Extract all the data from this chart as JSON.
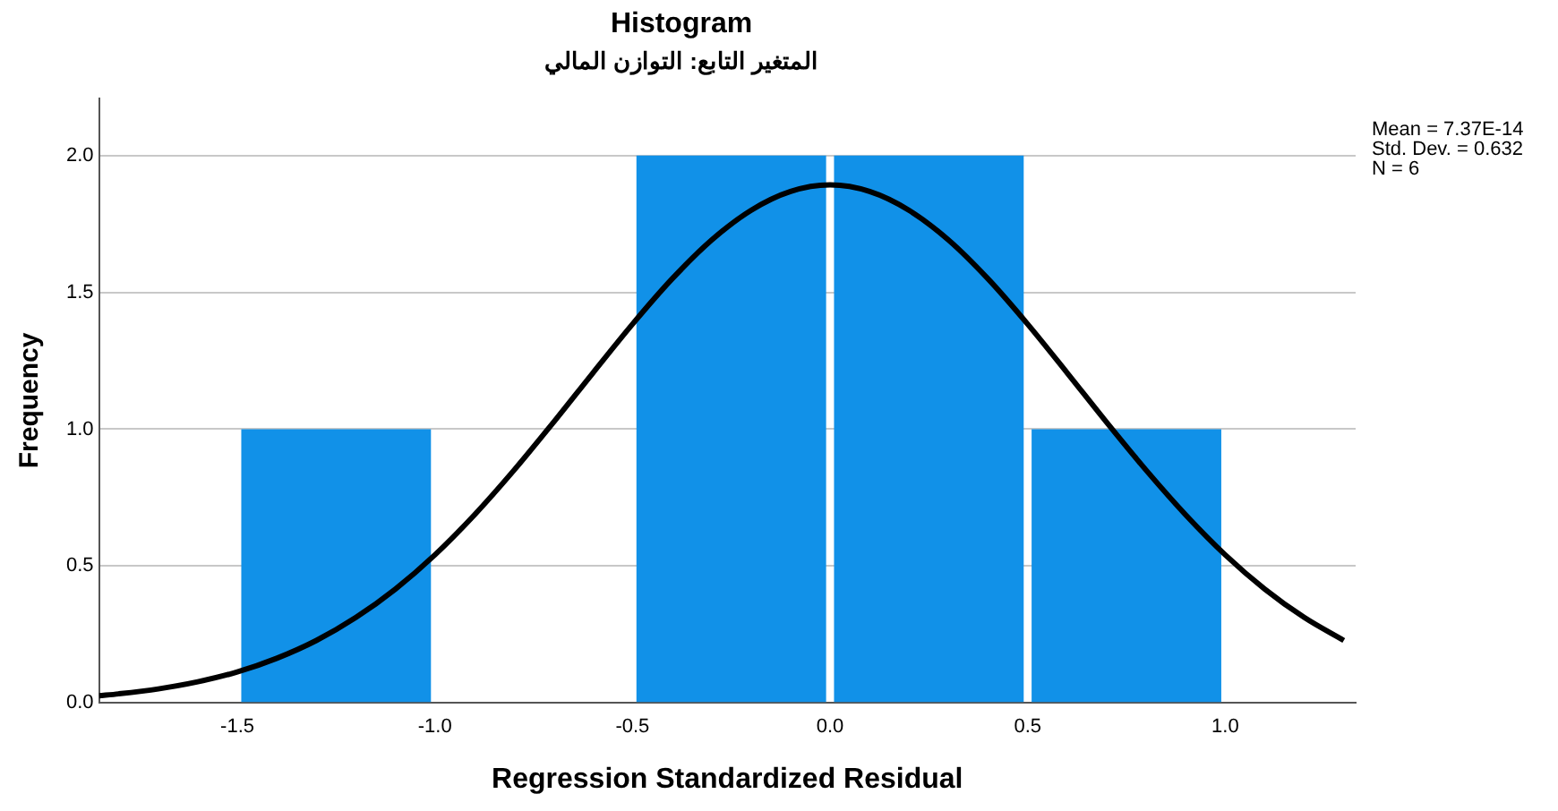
{
  "chart_data": {
    "type": "histogram",
    "title": "Histogram",
    "subtitle": "المتغير التابع: التوازن المالي",
    "xlabel": "Regression Standardized Residual",
    "ylabel": "Frequency",
    "bins": [
      -1.5,
      -1.0,
      -0.5,
      0,
      0.5,
      1.0
    ],
    "values": [
      1,
      0,
      2,
      2,
      1
    ],
    "color": "#1191e8",
    "series": [
      {
        "type": "line",
        "color": "#000000",
        "x": [
          -1.85,
          -1.8,
          -1.7,
          -1.6,
          -1.5,
          -1.4,
          -1.3,
          -1.2,
          -1.1,
          -1.0,
          -0.9,
          -0.8,
          -0.7,
          -0.6,
          -0.5,
          -0.4,
          -0.3,
          -0.2,
          -0.1,
          0,
          0.1,
          0.2,
          0.3,
          0.4,
          0.5,
          0.6,
          0.7,
          0.8,
          0.9,
          1.0,
          1.1,
          1.2,
          1.3
        ],
        "values": [
          0.026,
          0.033,
          0.051,
          0.077,
          0.113,
          0.163,
          0.228,
          0.312,
          0.416,
          0.541,
          0.687,
          0.85,
          1.025,
          1.206,
          1.384,
          1.549,
          1.691,
          1.8,
          1.869,
          1.893,
          1.869,
          1.8,
          1.691,
          1.549,
          1.384,
          1.206,
          1.025,
          0.85,
          0.687,
          0.541,
          0.416,
          0.312,
          0.228
        ]
      }
    ],
    "xlim": [
      -1.85,
      1.33
    ],
    "xticks": [
      {
        "value": -1.5,
        "label": "-1.5"
      },
      {
        "value": -1.0,
        "label": "-1.0"
      },
      {
        "value": -0.5,
        "label": "-0.5"
      },
      {
        "value": 0,
        "label": "0.0"
      },
      {
        "value": 0.5,
        "label": "0.5"
      },
      {
        "value": 1.0,
        "label": "1.0"
      }
    ],
    "ylim": [
      0,
      2.21
    ],
    "yticks": [
      {
        "value": 0,
        "label": "0.0"
      },
      {
        "value": 0.5,
        "label": "0.5"
      },
      {
        "value": 1.0,
        "label": "1.0"
      },
      {
        "value": 1.5,
        "label": "1.5"
      },
      {
        "value": 2.0,
        "label": "2.0"
      }
    ],
    "grid": "y",
    "legend": false,
    "marker": "none",
    "line_style": "solid",
    "annotations": [
      "Mean = 7.37E-14",
      "Std. Dev. = 0.632",
      "N = 6"
    ]
  }
}
